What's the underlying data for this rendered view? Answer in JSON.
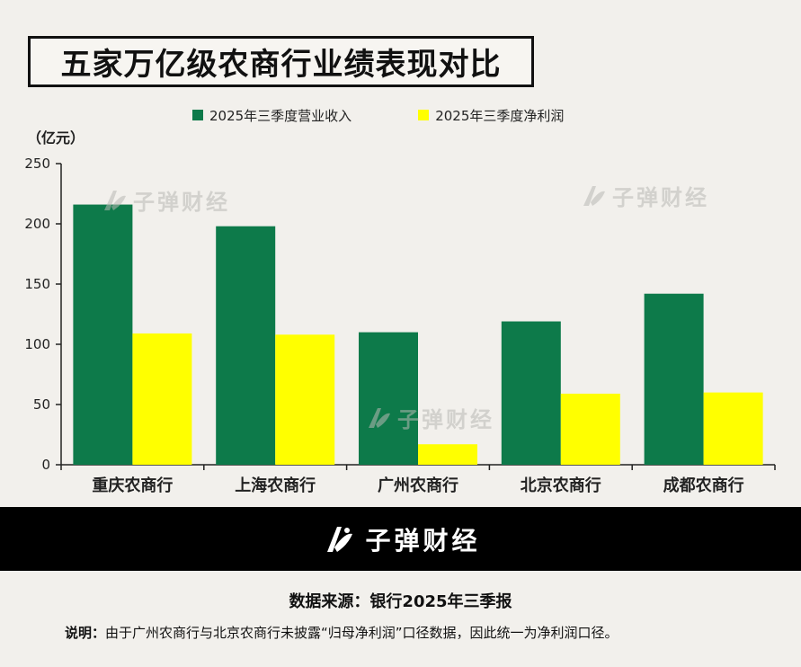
{
  "title": "五家万亿级农商行业绩表现对比",
  "unit_label": "（亿元）",
  "colors": {
    "revenue": "#0d7a4a",
    "profit": "#ffff00",
    "axis": "#222222"
  },
  "chart_data": {
    "type": "bar",
    "title": "五家万亿级农商行业绩表现对比",
    "categories": [
      "重庆农商行",
      "上海农商行",
      "广州农商行",
      "北京农商行",
      "成都农商行"
    ],
    "series": [
      {
        "name": "2025年三季度营业收入",
        "values": [
          216,
          198,
          110,
          119,
          142
        ]
      },
      {
        "name": "2025年三季度净利润",
        "values": [
          109,
          108,
          17,
          59,
          60
        ]
      }
    ],
    "ylim": [
      0,
      250
    ],
    "yticks": [
      0,
      50,
      100,
      150,
      200,
      250
    ],
    "ylabel": "亿元",
    "xlabel": "",
    "legend": "top"
  },
  "watermark": {
    "text": "子弹财经"
  },
  "footer": {
    "brand": "子弹财经",
    "source": "数据来源：银行2025年三季报",
    "note_label": "说明：",
    "note_text": "由于广州农商行与北京农商行未披露“归母净利润”口径数据，因此统一为净利润口径。"
  }
}
